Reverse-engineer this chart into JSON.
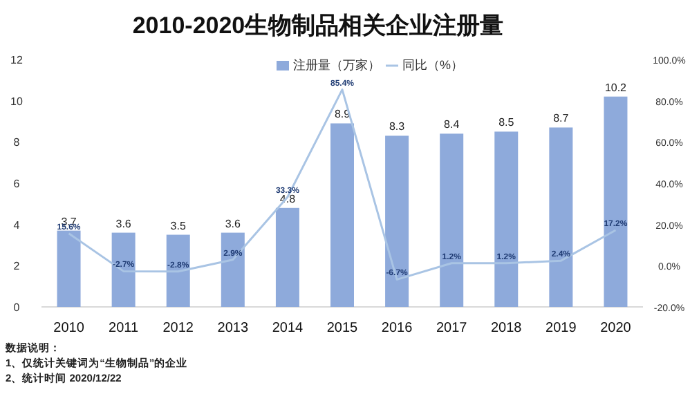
{
  "chart_data": {
    "type": "bar",
    "title": "2010-2020生物制品相关企业注册量",
    "categories": [
      "2010",
      "2011",
      "2012",
      "2013",
      "2014",
      "2015",
      "2016",
      "2017",
      "2018",
      "2019",
      "2020"
    ],
    "series": [
      {
        "name": "注册量（万家）",
        "color": "#8eaadb",
        "values": [
          3.7,
          3.6,
          3.5,
          3.6,
          4.8,
          8.9,
          8.3,
          8.4,
          8.5,
          8.7,
          10.2
        ],
        "value_labels": [
          "3.7",
          "3.6",
          "3.5",
          "3.6",
          "4.8",
          "8.9",
          "8.3",
          "8.4",
          "8.5",
          "8.7",
          "10.2"
        ]
      },
      {
        "name": "同比（%）",
        "type": "line",
        "axis": "y2",
        "color": "#a9c4e4",
        "values": [
          15.6,
          -2.7,
          -2.8,
          2.9,
          33.3,
          85.4,
          -6.7,
          1.2,
          1.2,
          2.4,
          17.2
        ],
        "value_labels": [
          "15.6%",
          "-2.7%",
          "-2.8%",
          "2.9%",
          "33.3%",
          "85.4%",
          "-6.7%",
          "1.2%",
          "1.2%",
          "2.4%",
          "17.2%"
        ]
      }
    ],
    "ylim": [
      0,
      12
    ],
    "yticks": [
      0,
      2,
      4,
      6,
      8,
      10,
      12
    ],
    "y2lim": [
      -20,
      100
    ],
    "y2ticks": [
      {
        "value": -20,
        "label": "-20.0%"
      },
      {
        "value": 0,
        "label": "0.0%"
      },
      {
        "value": 20,
        "label": "20.0%"
      },
      {
        "value": 40,
        "label": "40.0%"
      },
      {
        "value": 60,
        "label": "60.0%"
      },
      {
        "value": 80,
        "label": "80.0%"
      },
      {
        "value": 100,
        "label": "100.0%"
      }
    ],
    "legend": "top",
    "grid": false,
    "annotations": [
      "数据说明：",
      "1、仅统计关键词为“生物制品”的企业",
      "2、统计时间 2020/12/22"
    ]
  }
}
